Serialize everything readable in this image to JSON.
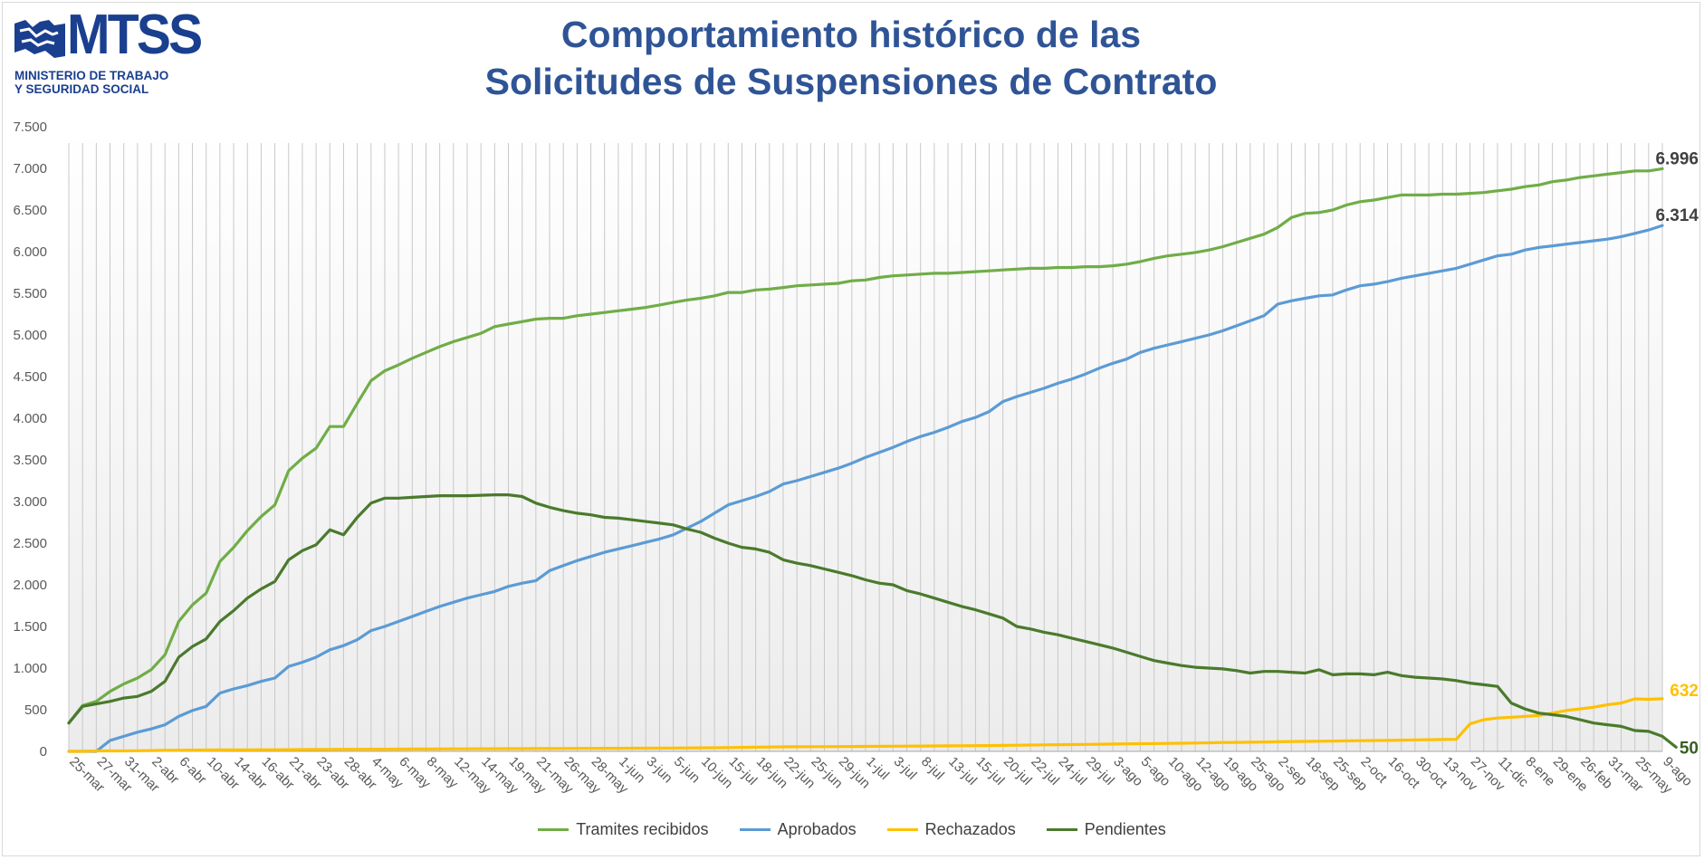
{
  "logo": {
    "text": "MTSS",
    "subtitle": "MINISTERIO DE TRABAJO\nY SEGURIDAD SOCIAL"
  },
  "colors": {
    "title": "#2f5496",
    "tramites": "#70ad47",
    "aprobados": "#5b9bd5",
    "rechazados": "#ffc000",
    "pendientes": "#4a7a2c",
    "grid": "#bfbfbf",
    "axis_text": "#595959"
  },
  "chart_data": {
    "type": "line",
    "title": "Comportamiento histórico de las Solicitudes de Suspensiones de Contrato",
    "title_lines": [
      "Comportamiento histórico de las",
      "Solicitudes de Suspensiones de Contrato"
    ],
    "xlabel": "",
    "ylabel": "",
    "ylim": [
      0,
      7500
    ],
    "yticks": [
      0,
      500,
      1000,
      1500,
      2000,
      2500,
      3000,
      3500,
      4000,
      4500,
      5000,
      5500,
      6000,
      6500,
      7000,
      7500
    ],
    "ytick_labels": [
      "0",
      "500",
      "1.000",
      "1.500",
      "2.000",
      "2.500",
      "3.000",
      "3.500",
      "4.000",
      "4.500",
      "5.000",
      "5.500",
      "6.000",
      "6.500",
      "7.000",
      "7.500"
    ],
    "x_tick_labels": [
      "25-mar",
      "27-mar",
      "31-mar",
      "2-abr",
      "6-abr",
      "10-abr",
      "14-abr",
      "16-abr",
      "21-abr",
      "23-abr",
      "28-abr",
      "4-may",
      "6-may",
      "8-may",
      "12-may",
      "14-may",
      "19-may",
      "21-may",
      "26-may",
      "28-may",
      "1-jun",
      "3-jun",
      "5-jun",
      "10-jun",
      "15-jul",
      "18-jun",
      "22-jun",
      "25-jun",
      "29-jun",
      "1-jul",
      "3-jul",
      "8-jul",
      "13-jul",
      "15-jul",
      "20-jul",
      "22-jul",
      "24-jul",
      "29-jul",
      "3-ago",
      "5-ago",
      "10-ago",
      "12-ago",
      "19-ago",
      "25-ago",
      "2-sep",
      "18-sep",
      "25-sep",
      "2-oct",
      "16-oct",
      "30-oct",
      "13-nov",
      "27-nov",
      "11-dic",
      "8-ene",
      "29-ene",
      "26-feb",
      "31-mar",
      "25-may",
      "9-ago"
    ],
    "legend_position": "bottom",
    "vertical_gridlines": true,
    "series": [
      {
        "name": "Tramites recibidos",
        "color": "#70ad47",
        "end_label": "6.996",
        "values": [
          340,
          550,
          600,
          720,
          810,
          880,
          980,
          1160,
          1560,
          1760,
          1900,
          2280,
          2450,
          2650,
          2820,
          2960,
          3370,
          3520,
          3640,
          3900,
          3900,
          4180,
          4450,
          4570,
          4640,
          4720,
          4790,
          4860,
          4920,
          4970,
          5020,
          5100,
          5130,
          5160,
          5190,
          5200,
          5200,
          5230,
          5250,
          5270,
          5290,
          5310,
          5330,
          5360,
          5390,
          5420,
          5440,
          5470,
          5510,
          5510,
          5540,
          5550,
          5570,
          5590,
          5600,
          5610,
          5620,
          5650,
          5660,
          5690,
          5710,
          5720,
          5730,
          5740,
          5740,
          5750,
          5760,
          5770,
          5780,
          5790,
          5800,
          5800,
          5810,
          5810,
          5820,
          5820,
          5830,
          5850,
          5880,
          5920,
          5950,
          5970,
          5990,
          6020,
          6060,
          6110,
          6160,
          6210,
          6290,
          6410,
          6460,
          6470,
          6500,
          6560,
          6600,
          6620,
          6650,
          6680,
          6680,
          6680,
          6690,
          6690,
          6700,
          6710,
          6730,
          6750,
          6780,
          6800,
          6840,
          6860,
          6890,
          6910,
          6930,
          6950,
          6970,
          6970,
          6996
        ]
      },
      {
        "name": "Aprobados",
        "color": "#5b9bd5",
        "end_label": "6.314",
        "values": [
          0,
          0,
          0,
          130,
          180,
          230,
          270,
          320,
          420,
          490,
          540,
          700,
          750,
          790,
          840,
          880,
          1020,
          1070,
          1130,
          1220,
          1270,
          1340,
          1450,
          1500,
          1560,
          1620,
          1680,
          1740,
          1790,
          1840,
          1880,
          1920,
          1980,
          2020,
          2050,
          2170,
          2230,
          2290,
          2340,
          2390,
          2430,
          2470,
          2510,
          2550,
          2600,
          2680,
          2760,
          2860,
          2960,
          3010,
          3060,
          3120,
          3210,
          3250,
          3300,
          3350,
          3400,
          3460,
          3530,
          3590,
          3650,
          3720,
          3780,
          3830,
          3890,
          3960,
          4010,
          4080,
          4200,
          4260,
          4310,
          4360,
          4420,
          4470,
          4530,
          4600,
          4660,
          4710,
          4790,
          4840,
          4880,
          4920,
          4960,
          5000,
          5050,
          5110,
          5170,
          5230,
          5370,
          5410,
          5440,
          5470,
          5480,
          5540,
          5590,
          5610,
          5640,
          5680,
          5710,
          5740,
          5770,
          5800,
          5850,
          5900,
          5950,
          5970,
          6020,
          6050,
          6070,
          6090,
          6110,
          6130,
          6150,
          6180,
          6220,
          6260,
          6314
        ]
      },
      {
        "name": "Rechazados",
        "color": "#ffc000",
        "end_label": "632",
        "values": [
          0,
          0,
          5,
          5,
          5,
          8,
          10,
          12,
          14,
          15,
          16,
          17,
          18,
          19,
          20,
          20,
          21,
          22,
          23,
          24,
          25,
          25,
          26,
          26,
          27,
          28,
          28,
          29,
          30,
          30,
          31,
          32,
          33,
          33,
          34,
          34,
          35,
          36,
          36,
          37,
          37,
          38,
          38,
          39,
          40,
          41,
          42,
          44,
          46,
          48,
          50,
          52,
          54,
          55,
          56,
          57,
          58,
          59,
          60,
          61,
          62,
          63,
          64,
          65,
          66,
          67,
          68,
          70,
          72,
          74,
          76,
          78,
          80,
          82,
          84,
          86,
          88,
          90,
          92,
          94,
          96,
          98,
          100,
          103,
          106,
          108,
          110,
          112,
          115,
          118,
          120,
          122,
          124,
          126,
          128,
          130,
          132,
          135,
          138,
          140,
          142,
          145,
          330,
          380,
          400,
          410,
          420,
          430,
          460,
          490,
          510,
          530,
          560,
          580,
          630,
          625,
          632
        ]
      },
      {
        "name": "Pendientes",
        "color": "#4a7a2c",
        "end_label": "50",
        "values": [
          340,
          540,
          570,
          600,
          640,
          660,
          720,
          840,
          1130,
          1260,
          1350,
          1560,
          1690,
          1840,
          1950,
          2040,
          2300,
          2410,
          2480,
          2660,
          2600,
          2810,
          2980,
          3040,
          3040,
          3050,
          3060,
          3070,
          3070,
          3070,
          3075,
          3080,
          3080,
          3060,
          2980,
          2930,
          2890,
          2860,
          2840,
          2810,
          2800,
          2780,
          2760,
          2740,
          2720,
          2670,
          2630,
          2560,
          2500,
          2450,
          2430,
          2390,
          2300,
          2260,
          2230,
          2190,
          2150,
          2110,
          2060,
          2020,
          2000,
          1930,
          1890,
          1840,
          1790,
          1740,
          1700,
          1650,
          1600,
          1500,
          1470,
          1430,
          1400,
          1360,
          1320,
          1280,
          1240,
          1190,
          1140,
          1090,
          1060,
          1030,
          1010,
          1000,
          990,
          970,
          940,
          960,
          960,
          950,
          940,
          980,
          920,
          930,
          930,
          920,
          950,
          910,
          890,
          880,
          870,
          850,
          820,
          800,
          780,
          580,
          510,
          460,
          440,
          420,
          380,
          340,
          320,
          300,
          250,
          240,
          180,
          50
        ]
      }
    ]
  }
}
